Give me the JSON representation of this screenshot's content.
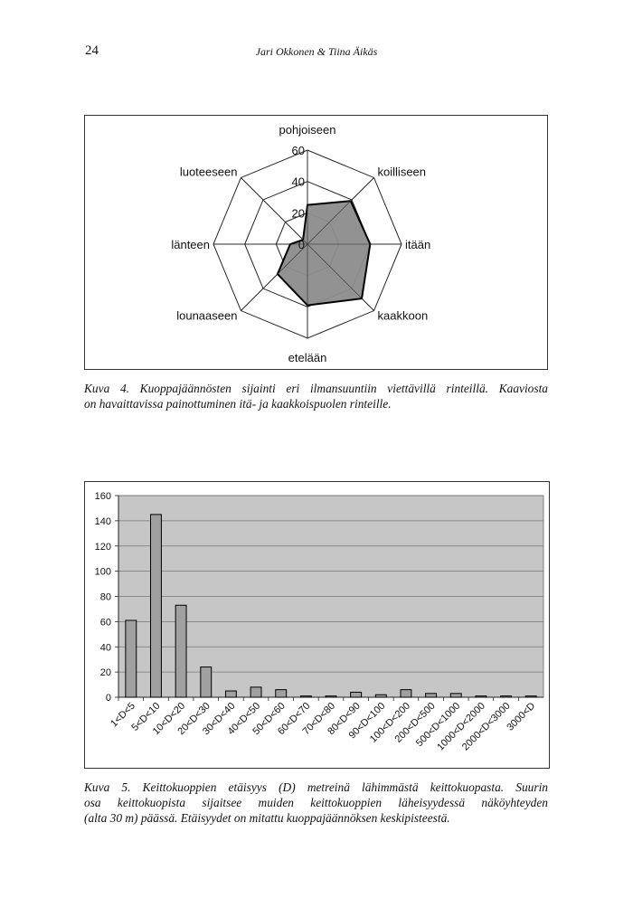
{
  "header": {
    "page_number": "24",
    "running_title": "Jari Okkonen & Tiina Äikäs"
  },
  "figure1": {
    "caption_lines": [
      "Kuva 4. Kuoppajäännösten sijainti eri ilmansuuntiin viettävillä rinteillä. Kaaviosta",
      "on havaittavissa painottuminen itä- ja kaakkoispuolen rinteille."
    ]
  },
  "figure2": {
    "caption_lines": [
      "Kuva 5. Keittokuoppien etäisyys (D) metreinä lähimmästä keittokuopasta. Suurin",
      "osa keittokuopista sijaitsee muiden keittokuoppien läheisyydessä näköyhteyden",
      "(alta 30 m) päässä. Etäisyydet on mitattu kuoppajäännöksen keskipisteestä."
    ]
  },
  "colors": {
    "radar_fill": "#8c8c8c",
    "bar_fill": "#a0a0a0",
    "plot_bg": "#c6c6c6",
    "ink": "#111111"
  },
  "chart_data": [
    {
      "type": "radar",
      "title": "",
      "categories": [
        "pohjoiseen",
        "koilliseen",
        "itään",
        "kaakkoon",
        "etelään",
        "lounaaseen",
        "länteen",
        "luoteeseen"
      ],
      "values": [
        25,
        39,
        40,
        49,
        39,
        27,
        11,
        4
      ],
      "radial_ticks": [
        "0",
        "20",
        "40",
        "60"
      ],
      "rlim": [
        0,
        60
      ]
    },
    {
      "type": "bar",
      "title": "",
      "xlabel": "",
      "ylabel": "",
      "categories": [
        "1<D<5",
        "5<D<10",
        "10<D<20",
        "20<D<30",
        "30<D<40",
        "40<D<50",
        "50<D<60",
        "60<D<70",
        "70<D<80",
        "80<D<90",
        "90<D<100",
        "100<D<200",
        "200<D<500",
        "500<D<1000",
        "1000<D<2000",
        "2000<D<3000",
        "3000<D"
      ],
      "values": [
        61,
        145,
        73,
        24,
        5,
        8,
        6,
        1,
        1,
        4,
        2,
        6,
        3,
        3,
        1,
        1,
        1
      ],
      "ylim": [
        0,
        160
      ],
      "yticks": [
        "0",
        "20",
        "40",
        "60",
        "80",
        "100",
        "120",
        "140",
        "160"
      ],
      "grid": true
    }
  ]
}
